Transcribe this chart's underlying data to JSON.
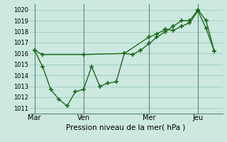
{
  "xlabel": "Pression niveau de la mer( hPa )",
  "background_color": "#cce8e0",
  "grid_color": "#99ccbb",
  "line_color": "#1a6b1a",
  "ylim": [
    1010.5,
    1020.5
  ],
  "yticks": [
    1011,
    1012,
    1013,
    1014,
    1015,
    1016,
    1017,
    1018,
    1019,
    1020
  ],
  "day_labels": [
    "Mar",
    "Ven",
    "Mer",
    "Jeu"
  ],
  "day_positions": [
    0,
    30,
    70,
    100
  ],
  "xlim": [
    -3,
    115
  ],
  "line1_x": [
    0,
    5,
    30,
    55,
    70,
    75,
    80,
    85,
    90,
    95,
    100,
    105,
    110
  ],
  "line1_y": [
    1016.3,
    1015.9,
    1015.9,
    1016.0,
    1017.5,
    1017.8,
    1018.2,
    1018.1,
    1018.5,
    1018.8,
    1019.9,
    1018.3,
    1016.2
  ],
  "line2_x": [
    0,
    5,
    10,
    15,
    20,
    25,
    30,
    35,
    40,
    45,
    50,
    55,
    60,
    65,
    70,
    75,
    80,
    85,
    90,
    95,
    100,
    105,
    110
  ],
  "line2_y": [
    1016.3,
    1014.8,
    1012.7,
    1011.8,
    1011.2,
    1012.5,
    1012.7,
    1014.8,
    1013.0,
    1013.3,
    1013.4,
    1016.0,
    1015.9,
    1016.3,
    1016.9,
    1017.5,
    1018.0,
    1018.5,
    1019.0,
    1019.0,
    1020.0,
    1019.0,
    1016.2
  ]
}
